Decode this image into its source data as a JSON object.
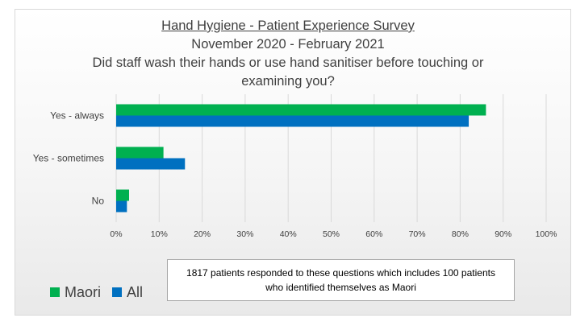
{
  "chart_data": {
    "type": "bar",
    "orientation": "horizontal",
    "title": "Hand Hygiene - Patient Experience Survey",
    "subtitle": "November 2020 - February 2021",
    "question_line1": "Did staff wash their hands or use hand sanitiser before touching or",
    "question_line2": "examining you?",
    "categories": [
      "Yes - always",
      "Yes - sometimes",
      "No"
    ],
    "series": [
      {
        "name": "Maori",
        "color": "#00b050",
        "values": [
          86,
          11,
          3
        ]
      },
      {
        "name": "All",
        "color": "#0070c0",
        "values": [
          82,
          16,
          2.5
        ]
      }
    ],
    "xlim": [
      0,
      100
    ],
    "xticks": [
      "0%",
      "10%",
      "20%",
      "30%",
      "40%",
      "50%",
      "60%",
      "70%",
      "80%",
      "90%",
      "100%"
    ],
    "grid": true,
    "legend_position": "bottom-left",
    "annotation": "1817 patients responded to these questions which includes 100 patients who identified themselves as Maori"
  }
}
